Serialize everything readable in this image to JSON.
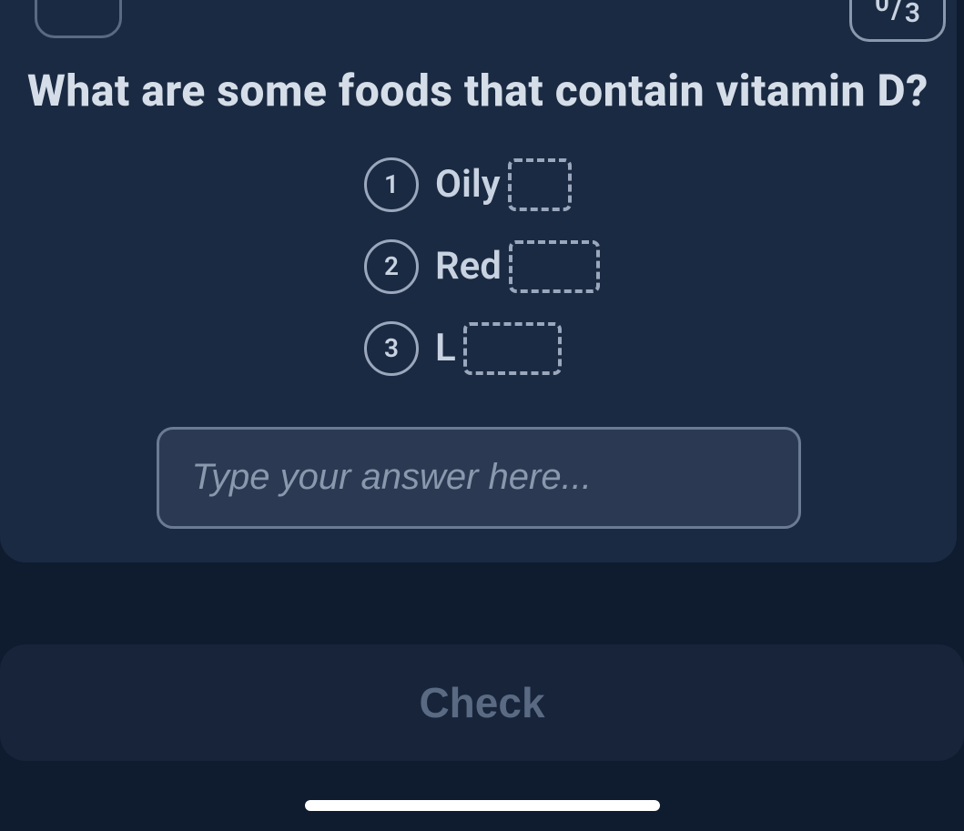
{
  "score": {
    "numerator": "0",
    "separator": "/",
    "denominator": "3"
  },
  "question": "What are some foods that contain vitamin D?",
  "answers": [
    {
      "number": "1",
      "prefix": "Oily",
      "blank_class": "blank-1"
    },
    {
      "number": "2",
      "prefix": "Red",
      "blank_class": "blank-2"
    },
    {
      "number": "3",
      "prefix": "L",
      "blank_class": "blank-3"
    }
  ],
  "input": {
    "placeholder": "Type your answer here..."
  },
  "check_label": "Check",
  "colors": {
    "screen_bg": "#0f1b2e",
    "card_bg": "#1a2a42",
    "text": "#d5dde8",
    "muted": "#8a98ae",
    "border": "#6b7b94",
    "input_bg": "#2b3a52",
    "check_bg": "#17243a",
    "check_text": "#5a6a82"
  }
}
